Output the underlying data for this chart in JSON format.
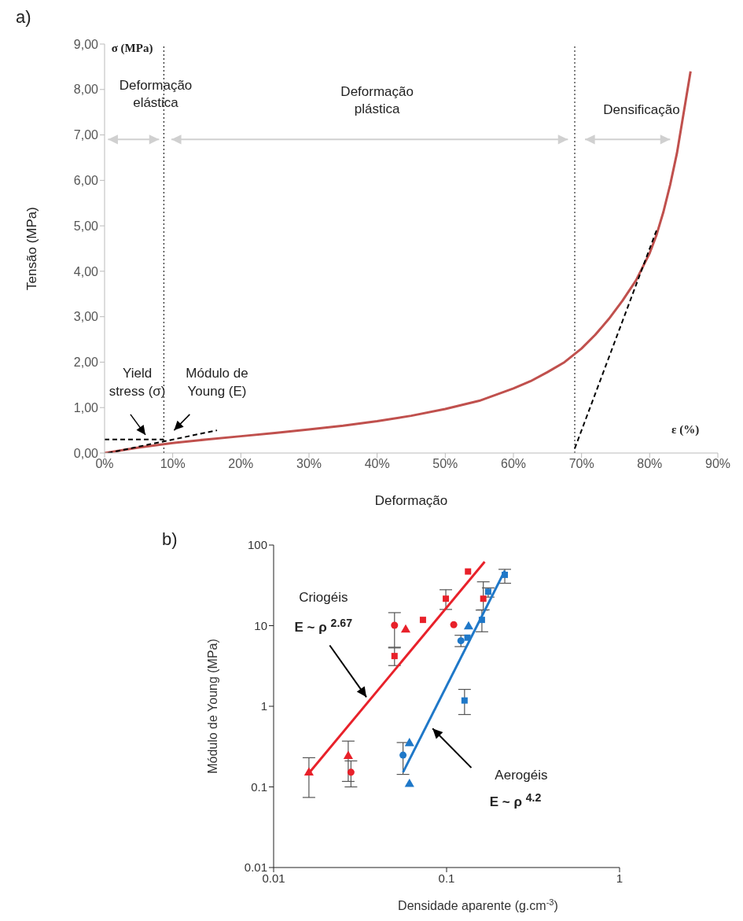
{
  "chart_data": [
    {
      "type": "line",
      "xlabel": "Deformação",
      "ylabel": "Tensão (MPa)",
      "xlim": [
        0,
        90
      ],
      "xticks": [
        {
          "value": 0,
          "label": "0%"
        },
        {
          "value": 10,
          "label": "10%"
        },
        {
          "value": 20,
          "label": "20%"
        },
        {
          "value": 30,
          "label": "30%"
        },
        {
          "value": 40,
          "label": "40%"
        },
        {
          "value": 50,
          "label": "50%"
        },
        {
          "value": 60,
          "label": "60%"
        },
        {
          "value": 70,
          "label": "70%"
        },
        {
          "value": 80,
          "label": "80%"
        },
        {
          "value": 90,
          "label": "90%"
        }
      ],
      "ylim": [
        0,
        9
      ],
      "yticks": [
        {
          "value": 0,
          "label": "0,00"
        },
        {
          "value": 1,
          "label": "1,00"
        },
        {
          "value": 2,
          "label": "2,00"
        },
        {
          "value": 3,
          "label": "3,00"
        },
        {
          "value": 4,
          "label": "4,00"
        },
        {
          "value": 5,
          "label": "5,00"
        },
        {
          "value": 6,
          "label": "6,00"
        },
        {
          "value": 7,
          "label": "7,00"
        },
        {
          "value": 8,
          "label": "8,00"
        },
        {
          "value": 9,
          "label": "9,00"
        }
      ],
      "series": [
        {
          "color": "#c0504d",
          "x": [
            0,
            5,
            10,
            15,
            20,
            25,
            30,
            35,
            40,
            45,
            50,
            55,
            60,
            62.5,
            65,
            67.5,
            70,
            72,
            74,
            76,
            78,
            79,
            80,
            81,
            82,
            83,
            84,
            85,
            85.5,
            86
          ],
          "values": [
            0,
            0.12,
            0.22,
            0.3,
            0.37,
            0.44,
            0.52,
            0.6,
            0.7,
            0.82,
            0.97,
            1.15,
            1.42,
            1.58,
            1.78,
            2.0,
            2.3,
            2.6,
            2.95,
            3.35,
            3.8,
            4.1,
            4.4,
            4.8,
            5.3,
            5.9,
            6.6,
            7.5,
            7.95,
            8.4
          ]
        },
        {
          "color": "#000000",
          "line_style": "dashed",
          "x": [
            0,
            8.7
          ],
          "values": [
            0.3,
            0.3
          ]
        },
        {
          "color": "#000000",
          "line_style": "dashed",
          "x": [
            0.5,
            16.5
          ],
          "values": [
            0,
            0.5
          ]
        },
        {
          "color": "#000000",
          "line_style": "dashed",
          "x": [
            69,
            81
          ],
          "values": [
            0.1,
            4.9
          ]
        }
      ],
      "ref_lines": [
        {
          "axis": "x",
          "value": 8.7,
          "color": "#000000",
          "line_style": "dotted"
        },
        {
          "axis": "x",
          "value": 69,
          "color": "#000000",
          "line_style": "dotted"
        }
      ],
      "annotations": [
        "a)",
        "σ (MPa)",
        "ε (%)",
        "Deformação\nelástica",
        "Deformação\nplástica",
        "Densificação",
        "Yield\nstress (σ)",
        "Módulo de\nYoung (E)"
      ]
    },
    {
      "type": "scatter",
      "xlabel": "Densidade aparente  (g.cm$^{-3}$)",
      "ylabel": "Módulo de Young (MPa)",
      "log": "xy",
      "xlim": [
        0.01,
        1
      ],
      "xticks": [
        0.01,
        0.1,
        1
      ],
      "ylim": [
        0.01,
        100
      ],
      "yticks": [
        0.01,
        0.1,
        1,
        10,
        100
      ],
      "series": [
        {
          "color": "#e8212a",
          "marker": "square",
          "x": [
            0.05,
            0.073,
            0.099,
            0.133,
            0.163
          ],
          "values": [
            4.2,
            11.8,
            21.6,
            47,
            21.6
          ],
          "errors": [
            [
              3.2,
              5.3
            ],
            null,
            [
              15.9,
              27.9
            ],
            null,
            [
              15.7,
              35
            ]
          ]
        },
        {
          "color": "#e8212a",
          "marker": "circle",
          "x": [
            0.05,
            0.11,
            0.028
          ],
          "values": [
            10.1,
            10.3,
            0.152
          ],
          "errors": [
            [
              5.4,
              14.5
            ],
            null,
            [
              0.1,
              0.21
            ]
          ]
        },
        {
          "color": "#e8212a",
          "marker": "triangle",
          "x": [
            0.016,
            0.027,
            0.058
          ],
          "values": [
            0.15,
            0.24,
            8.9
          ],
          "errors": [
            [
              0.074,
              0.23
            ],
            [
              0.117,
              0.37
            ],
            null
          ]
        },
        {
          "color": "#1f78c8",
          "marker": "square",
          "x": [
            0.217,
            0.174,
            0.16,
            0.127,
            0.132
          ],
          "values": [
            42.7,
            26.4,
            11.8,
            1.18,
            7.1
          ],
          "errors": [
            [
              33.6,
              50
            ],
            [
              22.6,
              29.4
            ],
            [
              8.4,
              15.6
            ],
            [
              0.79,
              1.62
            ],
            null
          ]
        },
        {
          "color": "#1f78c8",
          "marker": "circle",
          "x": [
            0.121,
            0.056
          ],
          "values": [
            6.5,
            0.248
          ],
          "errors": [
            [
              5.5,
              7.6
            ],
            [
              0.143,
              0.355
            ]
          ]
        },
        {
          "color": "#1f78c8",
          "marker": "triangle",
          "x": [
            0.134,
            0.061,
            0.061
          ],
          "values": [
            9.7,
            0.347,
            0.108
          ]
        },
        {
          "type": "line",
          "color": "#e8212a",
          "x": [
            0.016,
            0.166
          ],
          "values": [
            0.148,
            62
          ]
        },
        {
          "type": "line",
          "color": "#1f78c8",
          "x": [
            0.056,
            0.217
          ],
          "values": [
            0.152,
            48
          ]
        }
      ],
      "annotations": [
        "b)",
        "Criogéis",
        "E ~ ρ $^{2.67}$",
        "Aerogéis",
        "E ~ ρ $^{4.2}$"
      ]
    }
  ]
}
